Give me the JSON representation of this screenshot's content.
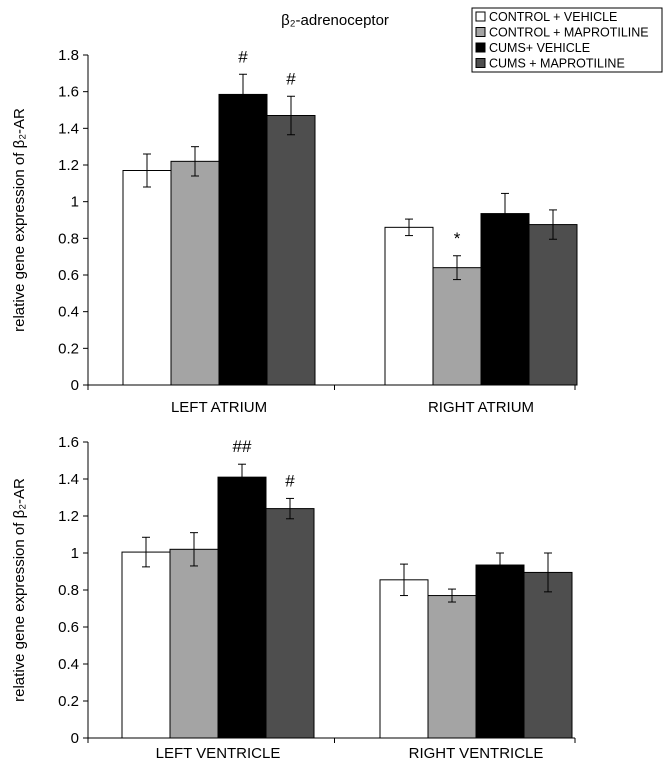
{
  "chart_data": [
    {
      "type": "bar",
      "title": "β₂-adrenoceptor",
      "ylabel": "relative gene expression of β₂-AR",
      "xlabel": "",
      "ylim": [
        0,
        1.8
      ],
      "yticks": [
        "0",
        "0.2",
        "0.4",
        "0.6",
        "0.8",
        "1",
        "1.2",
        "1.4",
        "1.6",
        "1.8"
      ],
      "categories": [
        "LEFT ATRIUM",
        "RIGHT ATRIUM"
      ],
      "grid": false,
      "series": [
        {
          "name": "CONTROL + VEHICLE",
          "values": [
            1.17,
            0.86
          ],
          "errors": [
            0.09,
            0.045
          ]
        },
        {
          "name": "CONTROL + MAPROTILINE",
          "values": [
            1.22,
            0.64
          ],
          "errors": [
            0.08,
            0.065
          ]
        },
        {
          "name": "CUMS+ VEHICLE",
          "values": [
            1.585,
            0.935
          ],
          "errors": [
            0.11,
            0.11
          ]
        },
        {
          "name": "CUMS + MAPROTILINE",
          "values": [
            1.47,
            0.875
          ],
          "errors": [
            0.105,
            0.08
          ]
        }
      ],
      "annotations": [
        {
          "category": 0,
          "series": 2,
          "text": "#"
        },
        {
          "category": 0,
          "series": 3,
          "text": "#"
        },
        {
          "category": 1,
          "series": 1,
          "text": "*"
        }
      ]
    },
    {
      "type": "bar",
      "title": "",
      "ylabel": "relative gene expression of β₂-AR",
      "xlabel": "",
      "ylim": [
        0,
        1.6
      ],
      "yticks": [
        "0",
        "0.2",
        "0.4",
        "0.6",
        "0.8",
        "1",
        "1.2",
        "1.4",
        "1.6"
      ],
      "categories": [
        "LEFT VENTRICLE",
        "RIGHT VENTRICLE"
      ],
      "grid": false,
      "series": [
        {
          "name": "CONTROL + VEHICLE",
          "values": [
            1.005,
            0.855
          ],
          "errors": [
            0.08,
            0.085
          ]
        },
        {
          "name": "CONTROL + MAPROTILINE",
          "values": [
            1.02,
            0.77
          ],
          "errors": [
            0.09,
            0.035
          ]
        },
        {
          "name": "CUMS+ VEHICLE",
          "values": [
            1.41,
            0.935
          ],
          "errors": [
            0.07,
            0.065
          ]
        },
        {
          "name": "CUMS + MAPROTILINE",
          "values": [
            1.24,
            0.895
          ],
          "errors": [
            0.055,
            0.105
          ]
        }
      ],
      "annotations": [
        {
          "category": 0,
          "series": 2,
          "text": "##"
        },
        {
          "category": 0,
          "series": 3,
          "text": "#"
        }
      ]
    }
  ],
  "legend": {
    "placement": "top-right",
    "entries": [
      "CONTROL + VEHICLE",
      "CONTROL + MAPROTILINE",
      "CUMS+ VEHICLE",
      "CUMS + MAPROTILINE"
    ]
  },
  "colors": {
    "series": [
      "#ffffff",
      "#a4a4a4",
      "#000000",
      "#4e4e4e"
    ],
    "stroke": "#000000"
  }
}
